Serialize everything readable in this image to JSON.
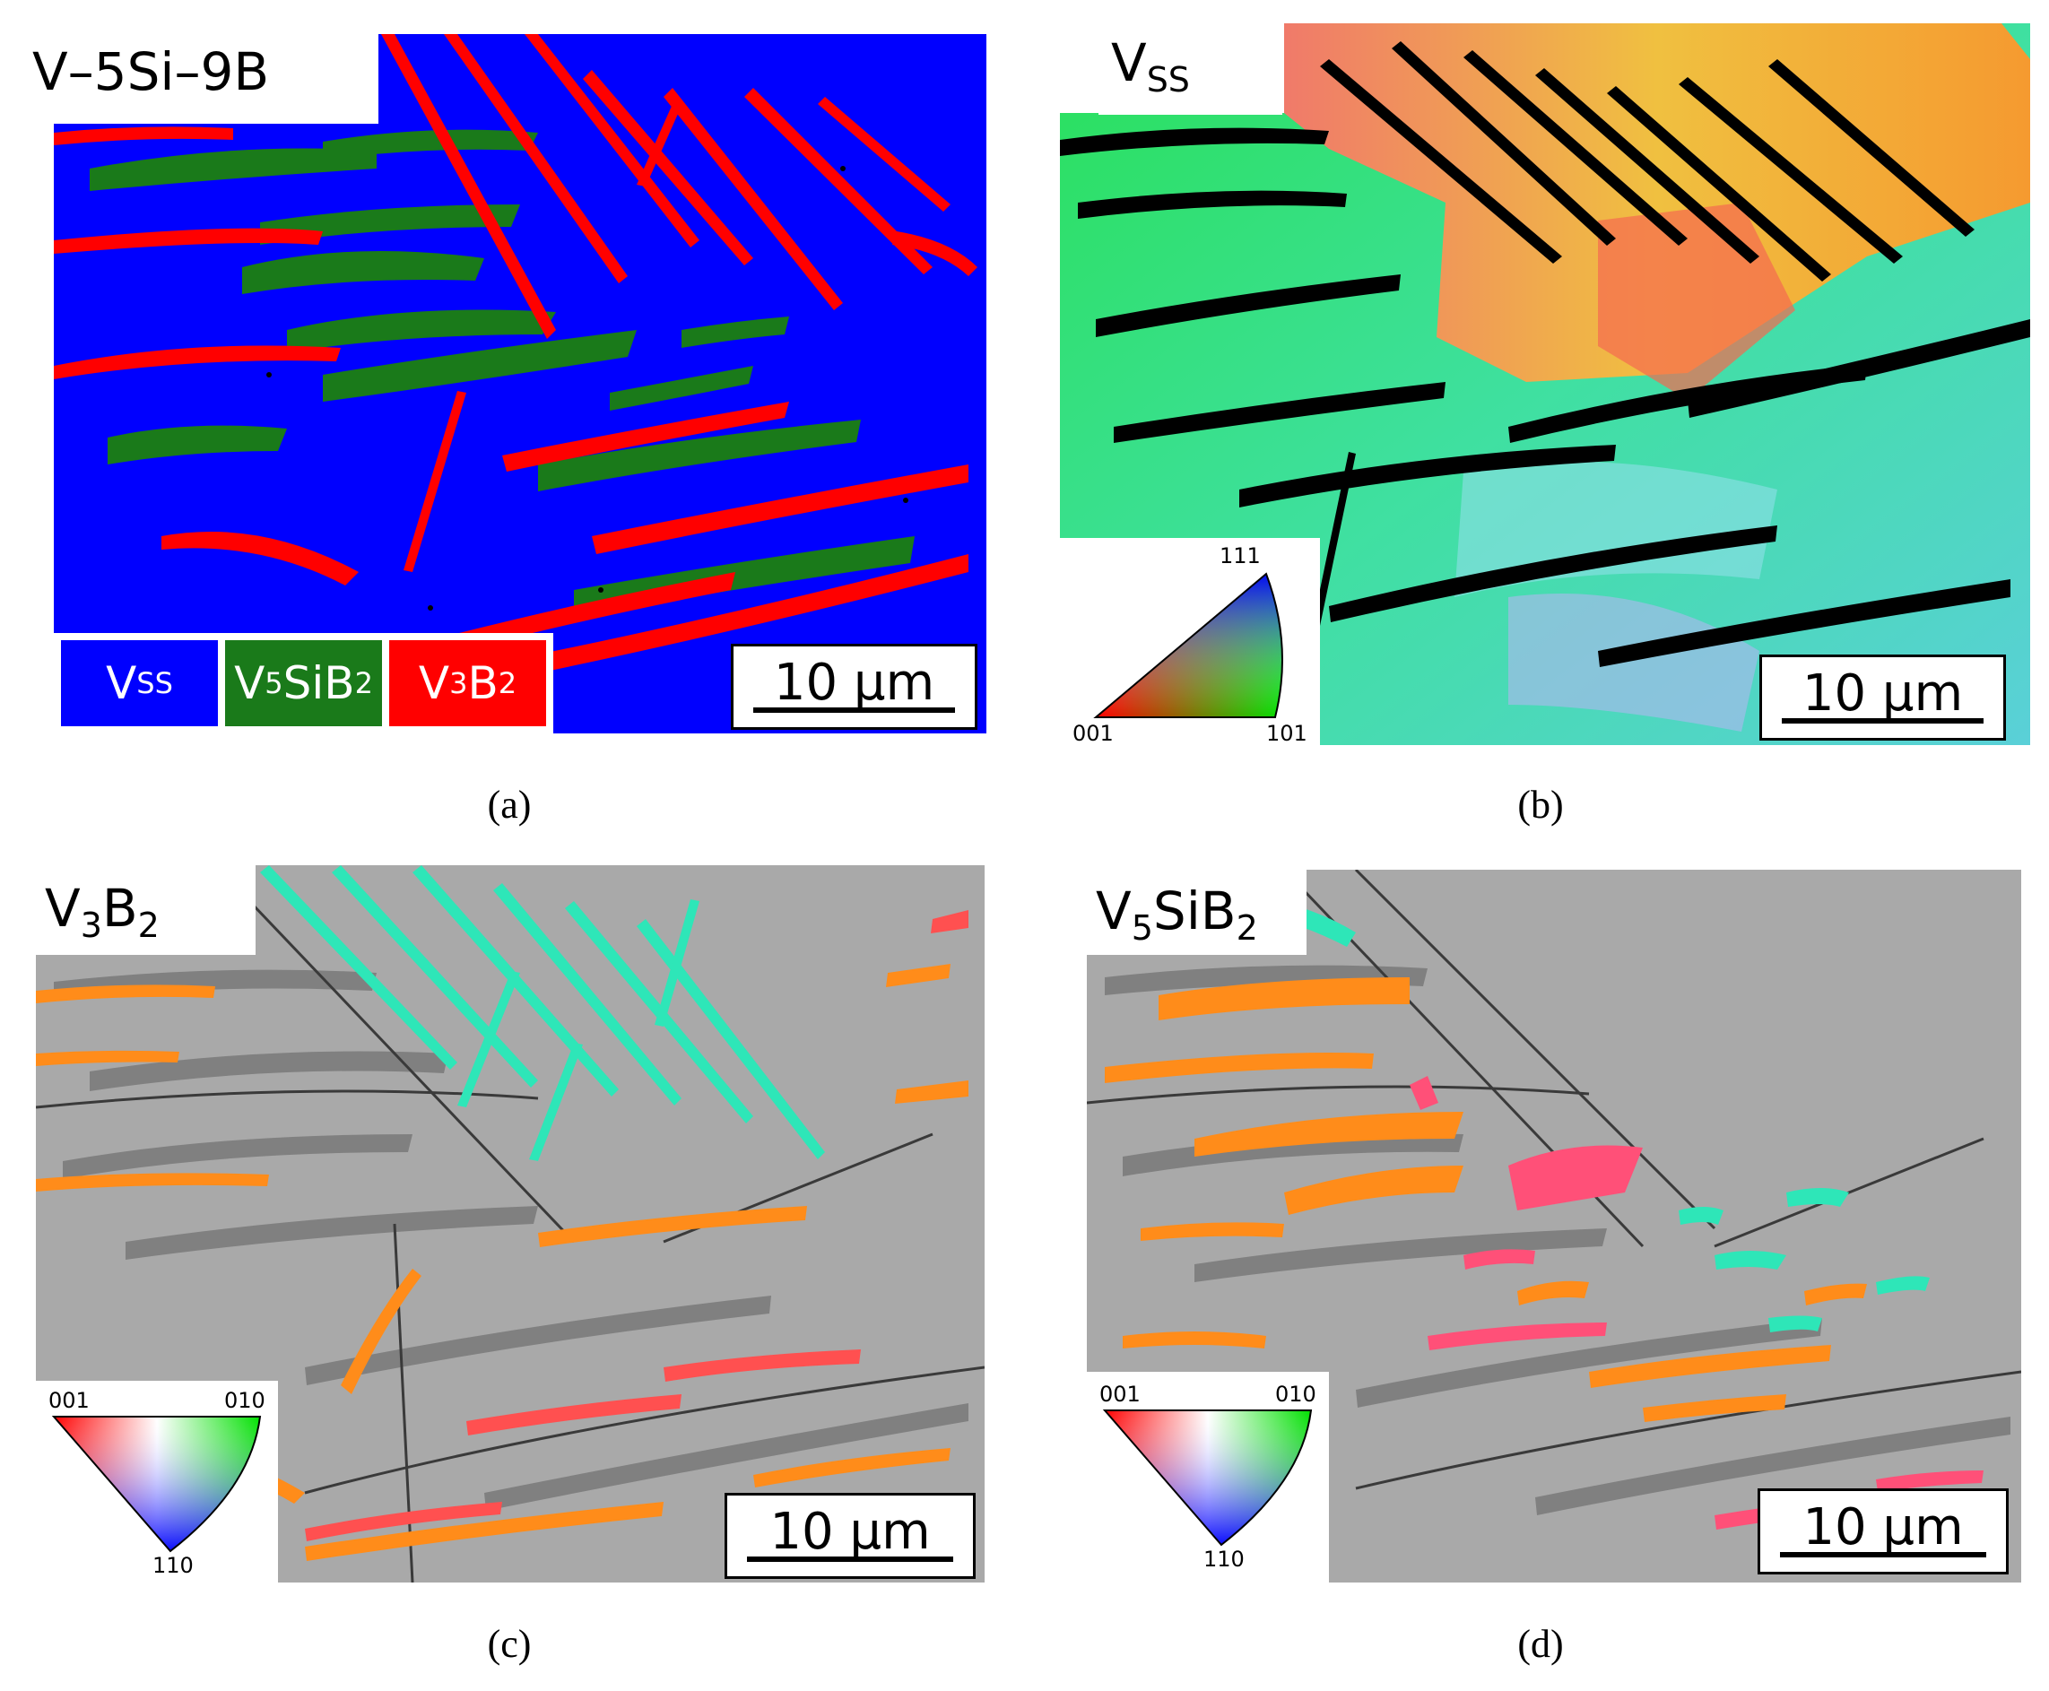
{
  "panel_a": {
    "title": "V–5Si–9B",
    "legend": [
      {
        "name": "V",
        "sub": "SS",
        "color": "#0000ff"
      },
      {
        "name": "V",
        "sub2": "5",
        "mid": "SiB",
        "sub": "2",
        "color": "#1a7a1a"
      },
      {
        "name": "V",
        "sub2": "3",
        "mid": "B",
        "sub": "2",
        "color": "#ff0000"
      }
    ],
    "scale_label": "10 μm",
    "caption": "(a)"
  },
  "panel_b": {
    "title_main": "V",
    "title_sub": "SS",
    "ipf": {
      "top": "111",
      "left": "001",
      "right": "101"
    },
    "scale_label": "10 μm",
    "caption": "(b)"
  },
  "panel_c": {
    "title_main": "V",
    "title_sub1": "3",
    "title_mid": "B",
    "title_sub2": "2",
    "ipf": {
      "left": "001",
      "right": "010",
      "bottom": "110"
    },
    "scale_label": "10 μm",
    "caption": "(c)"
  },
  "panel_d": {
    "title_main": "V",
    "title_sub1": "5",
    "title_mid": "SiB",
    "title_sub2": "2",
    "ipf": {
      "left": "001",
      "right": "010",
      "bottom": "110"
    },
    "scale_label": "10 μm",
    "caption": "(d)"
  },
  "colors": {
    "vss": "#0000ff",
    "v5sib2": "#1a7a1a",
    "v3b2": "#ff0000",
    "grey_bg": "#a9a9a9",
    "orange_grain": "#ff8c1a",
    "cyan_grain": "#2ee6b8"
  }
}
